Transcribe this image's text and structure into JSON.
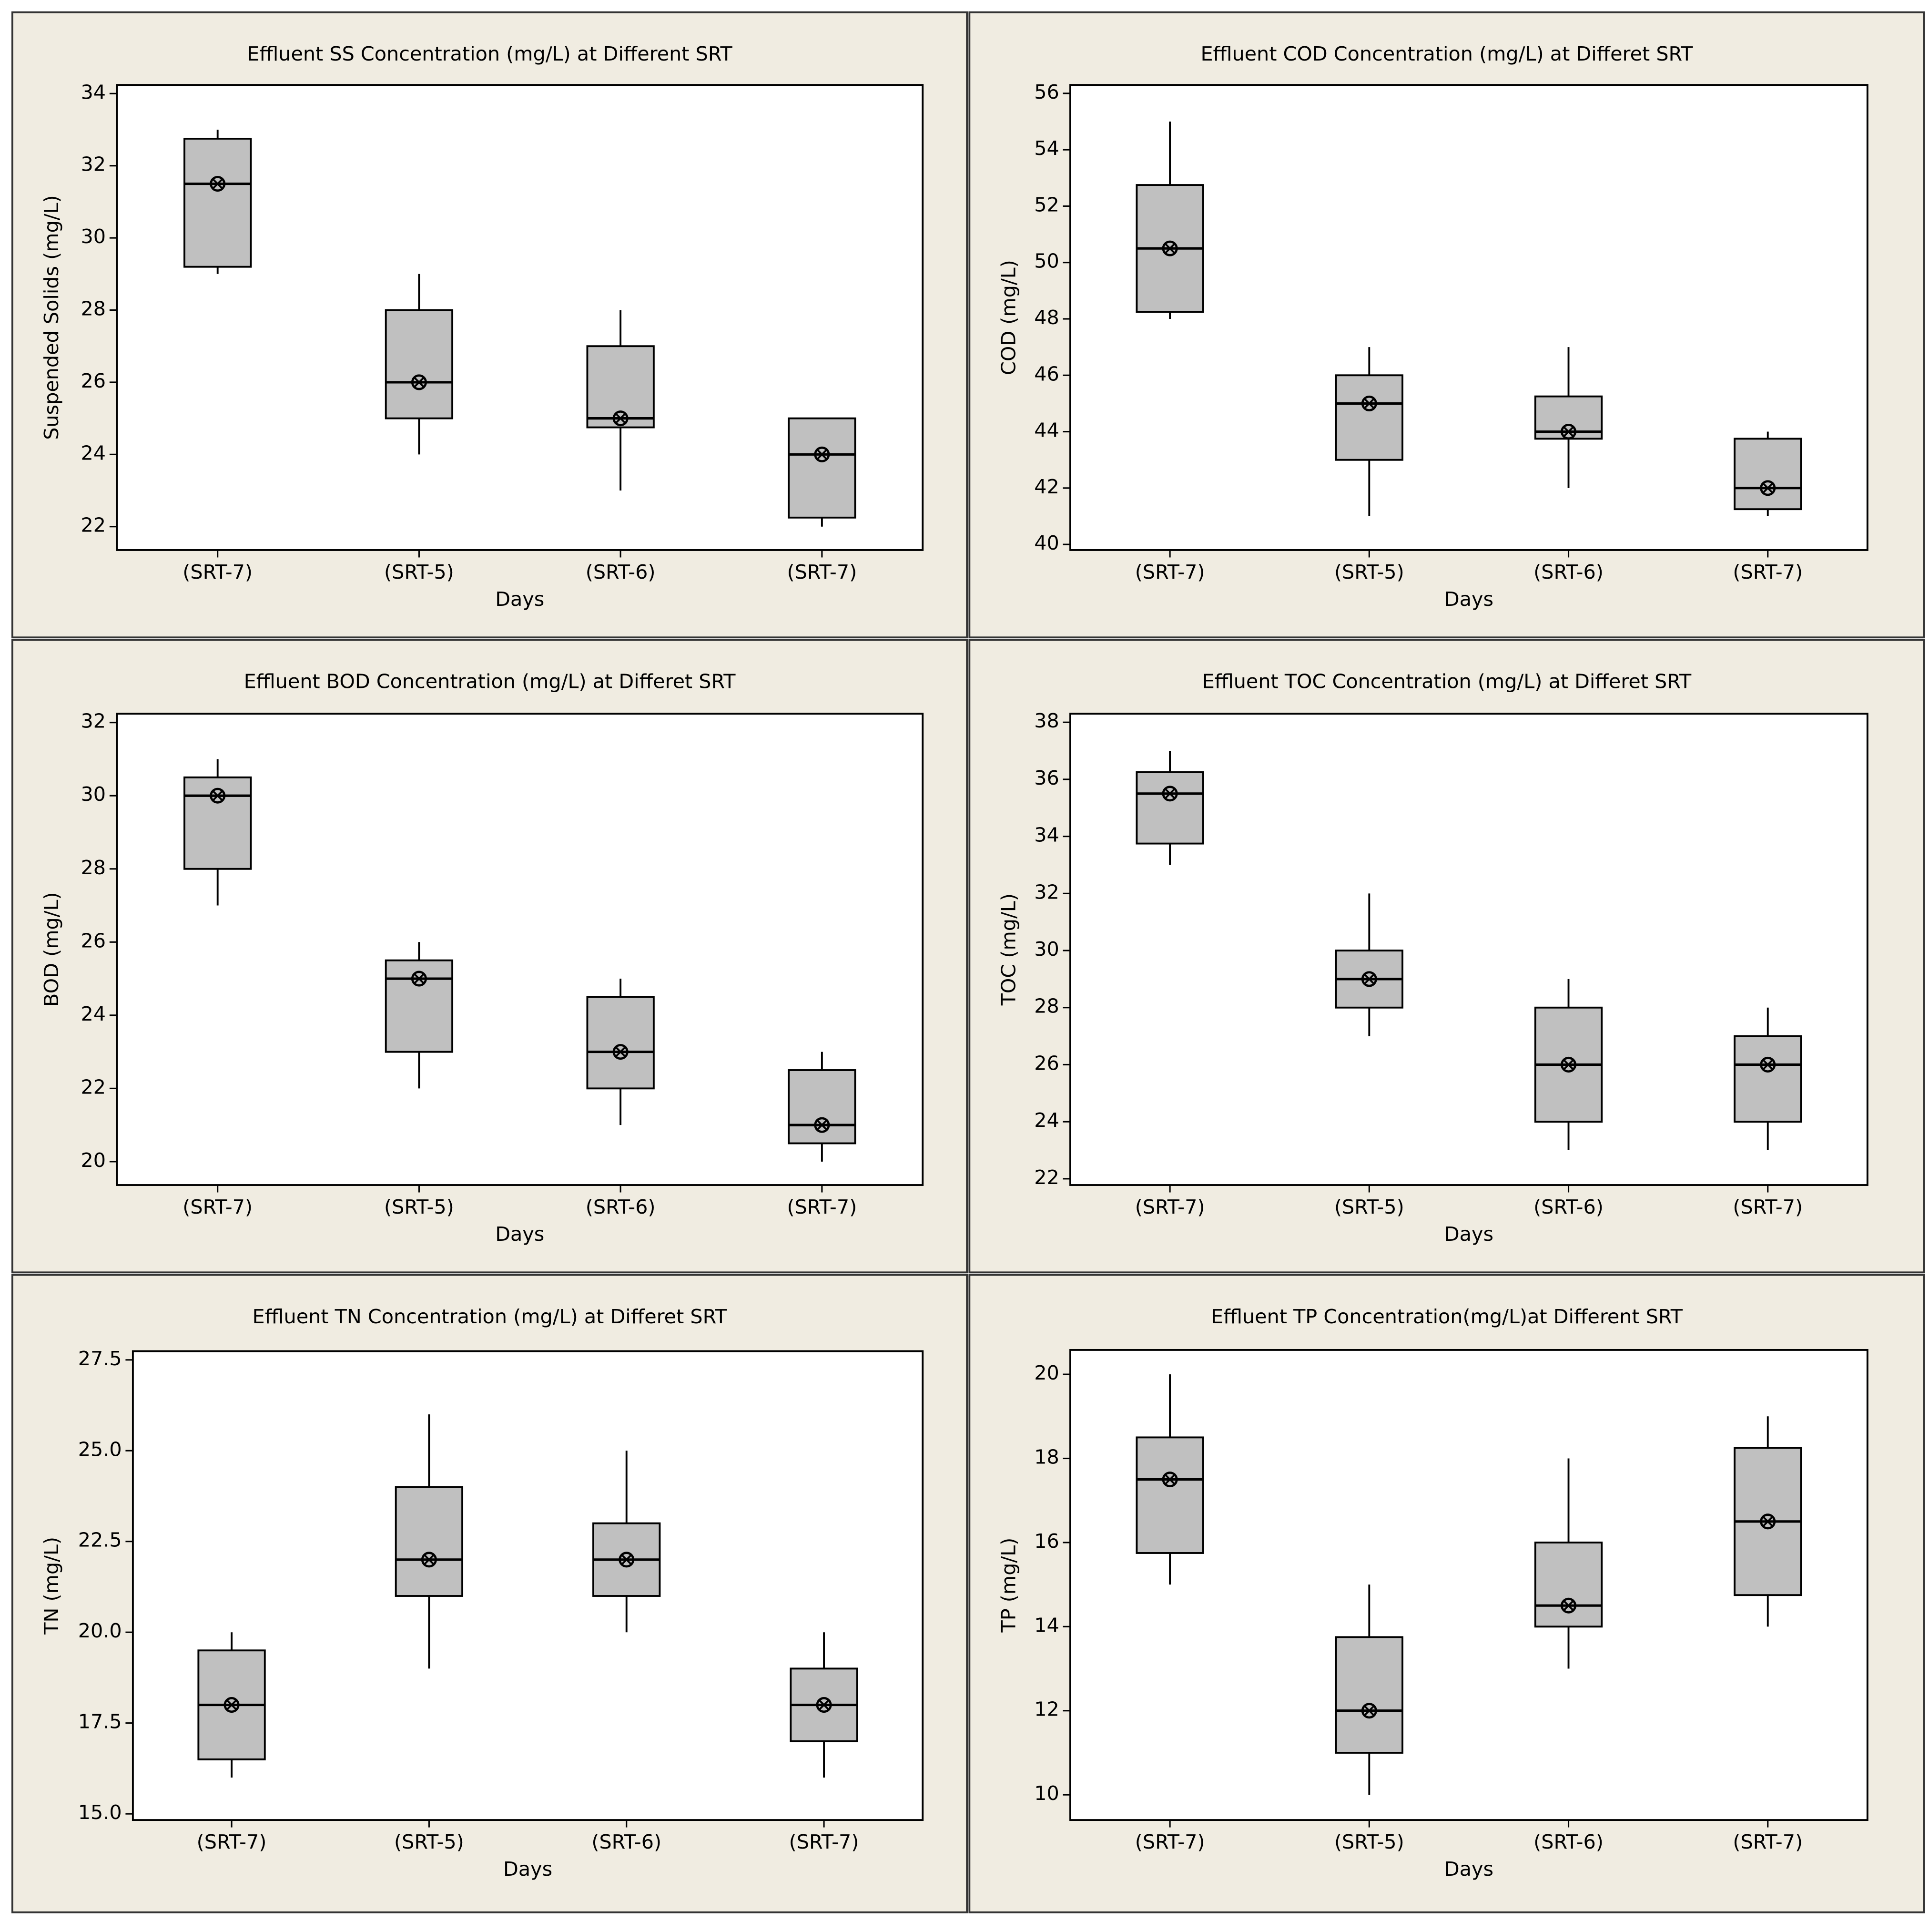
{
  "chart_data": [
    {
      "type": "box",
      "title": "Effluent SS Concentration (mg/L) at Different SRT",
      "x_label": "Days",
      "y_label": "Suspended Solids (mg/L)",
      "categories": [
        "(SRT-7)",
        "(SRT-5)",
        "(SRT-6)",
        "(SRT-7)"
      ],
      "min": [
        29,
        24,
        23,
        22
      ],
      "q1": [
        29.2,
        25,
        24.75,
        22.25
      ],
      "median": [
        31.5,
        26,
        25,
        24
      ],
      "q3": [
        32.75,
        28,
        27,
        25
      ],
      "max": [
        33,
        29,
        28,
        25
      ],
      "mean": [
        31.5,
        26,
        25,
        24
      ],
      "color": "#c0c0c0",
      "ylim": [
        21.35,
        34.24
      ],
      "yticks": [
        22,
        24,
        26,
        28,
        30,
        32,
        34
      ]
    },
    {
      "type": "box",
      "title": "Effluent COD Concentration (mg/L) at Differet SRT",
      "x_label": "Days",
      "y_label": "COD (mg/L)",
      "categories": [
        "(SRT-7)",
        "(SRT-5)",
        "(SRT-6)",
        "(SRT-7)"
      ],
      "min": [
        48,
        41,
        42,
        41
      ],
      "q1": [
        48.25,
        43,
        43.75,
        41.25
      ],
      "median": [
        50.5,
        45,
        44,
        42
      ],
      "q3": [
        52.75,
        46,
        45.25,
        43.75
      ],
      "max": [
        55,
        47,
        47,
        44
      ],
      "mean": [
        50.5,
        45,
        44,
        42
      ],
      "color": "#c0c0c0",
      "ylim": [
        39.8,
        56.3
      ],
      "yticks": [
        40,
        42,
        44,
        46,
        48,
        50,
        52,
        54,
        56
      ]
    },
    {
      "type": "box",
      "title": "Effluent BOD Concentration (mg/L) at Differet SRT",
      "x_label": "Days",
      "y_label": "BOD (mg/L)",
      "categories": [
        "(SRT-7)",
        "(SRT-5)",
        "(SRT-6)",
        "(SRT-7)"
      ],
      "min": [
        27,
        22,
        21,
        20
      ],
      "q1": [
        28,
        23,
        22,
        20.5
      ],
      "median": [
        30,
        25,
        23,
        21
      ],
      "q3": [
        30.5,
        25.5,
        24.5,
        22.5
      ],
      "max": [
        31,
        26,
        25,
        23
      ],
      "mean": [
        30,
        25,
        23,
        21
      ],
      "color": "#c0c0c0",
      "ylim": [
        19.36,
        32.24
      ],
      "yticks": [
        20,
        22,
        24,
        26,
        28,
        30,
        32
      ]
    },
    {
      "type": "box",
      "title": "Effluent TOC Concentration (mg/L) at Differet SRT",
      "x_label": "Days",
      "y_label": "TOC (mg/L)",
      "categories": [
        "(SRT-7)",
        "(SRT-5)",
        "(SRT-6)",
        "(SRT-7)"
      ],
      "min": [
        33,
        27,
        23,
        23
      ],
      "q1": [
        33.75,
        28,
        24,
        24
      ],
      "median": [
        35.5,
        29,
        26,
        26
      ],
      "q3": [
        36.25,
        30,
        28,
        27
      ],
      "max": [
        37,
        32,
        29,
        28
      ],
      "mean": [
        35.5,
        29,
        26,
        26
      ],
      "color": "#c0c0c0",
      "ylim": [
        21.78,
        38.3
      ],
      "yticks": [
        22,
        24,
        26,
        28,
        30,
        32,
        34,
        36,
        38
      ]
    },
    {
      "type": "box",
      "title": "Effluent TN Concentration (mg/L) at Differet SRT",
      "x_label": "Days",
      "y_label": "TN (mg/L)",
      "categories": [
        "(SRT-7)",
        "(SRT-5)",
        "(SRT-6)",
        "(SRT-7)"
      ],
      "min": [
        16,
        19,
        20,
        16
      ],
      "q1": [
        16.5,
        21,
        21,
        17
      ],
      "median": [
        18,
        22,
        22,
        18
      ],
      "q3": [
        19.5,
        24,
        23,
        19
      ],
      "max": [
        20,
        26,
        25,
        20
      ],
      "mean": [
        18,
        22,
        22,
        18
      ],
      "color": "#c0c0c0",
      "ylim": [
        14.83,
        27.74
      ],
      "yticks": [
        {
          "value": 15,
          "label": "15.0"
        },
        {
          "value": 17.5,
          "label": "17.5"
        },
        {
          "value": 20,
          "label": "20.0"
        },
        {
          "value": 22.5,
          "label": "22.5"
        },
        {
          "value": 25,
          "label": "25.0"
        },
        {
          "value": 27.5,
          "label": "27.5"
        }
      ]
    },
    {
      "type": "box",
      "title": "Effluent TP Concentration(mg/L)at Different SRT",
      "x_label": "Days",
      "y_label": "TP (mg/L)",
      "categories": [
        "(SRT-7)",
        "(SRT-5)",
        "(SRT-6)",
        "(SRT-7)"
      ],
      "min": [
        15,
        10,
        13,
        14
      ],
      "q1": [
        15.75,
        11,
        14,
        14.75
      ],
      "median": [
        17.5,
        12,
        14.5,
        16.5
      ],
      "q3": [
        18.5,
        13.75,
        16,
        18.25
      ],
      "max": [
        20,
        15,
        18,
        19
      ],
      "mean": [
        17.5,
        12,
        14.5,
        16.5
      ],
      "color": "#c0c0c0",
      "ylim": [
        9.4,
        20.58
      ],
      "yticks": [
        10,
        12,
        14,
        16,
        18,
        20
      ]
    }
  ]
}
